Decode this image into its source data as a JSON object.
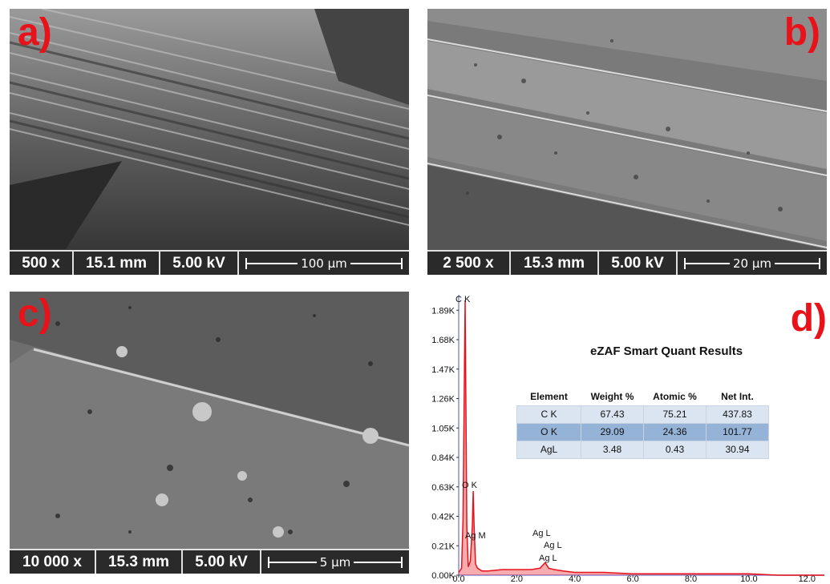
{
  "panels": [
    {
      "label": "a)",
      "magnification": "500 x",
      "working_distance": "15.1 mm",
      "voltage": "5.00 kV",
      "scale_bar": "100 µm"
    },
    {
      "label": "b)",
      "magnification": "2 500 x",
      "working_distance": "15.3 mm",
      "voltage": "5.00 kV",
      "scale_bar": "20 µm"
    },
    {
      "label": "c)",
      "magnification": "10 000 x",
      "working_distance": "15.3 mm",
      "voltage": "5.00 kV",
      "scale_bar": "5 µm"
    },
    {
      "label": "d)"
    }
  ],
  "eds": {
    "title": "eZAF Smart Quant Results",
    "headers": [
      "Element",
      "Weight %",
      "Atomic %",
      "Net Int."
    ],
    "rows": [
      {
        "element": "C K",
        "weight": "67.43",
        "atomic": "75.21",
        "net": "437.83"
      },
      {
        "element": "O K",
        "weight": "29.09",
        "atomic": "24.36",
        "net": "101.77"
      },
      {
        "element": "AgL",
        "weight": "3.48",
        "atomic": "0.43",
        "net": "30.94"
      }
    ],
    "peak_labels": [
      "C K",
      "O K",
      "Ag M",
      "Ag L",
      "Ag L",
      "Ag L"
    ]
  },
  "chart_data": {
    "type": "line",
    "yticks": [
      "0.00K",
      "0.21K",
      "0.42K",
      "0.63K",
      "0.84K",
      "1.05K",
      "1.26K",
      "1.47K",
      "1.68K",
      "1.89K"
    ],
    "xticks": [
      "0.0",
      "2.0",
      "4.0",
      "6.0",
      "8.0",
      "10.0",
      "12.0"
    ],
    "ylim": [
      0,
      2.0
    ],
    "xlim": [
      0,
      12.6
    ],
    "series": [
      {
        "x": [
          0.0,
          0.1,
          0.15,
          0.22,
          0.28,
          0.33,
          0.4,
          0.47,
          0.5,
          0.53,
          0.58,
          0.65,
          0.8,
          1.0,
          1.5,
          2.0,
          2.5,
          2.8,
          2.98,
          3.1,
          3.3,
          3.6,
          4.0,
          5.0,
          6.0,
          7.0,
          8.0,
          9.0,
          10.0,
          11.0,
          12.0,
          12.6
        ],
        "y": [
          0.02,
          0.05,
          0.4,
          1.96,
          0.35,
          0.06,
          0.1,
          0.35,
          0.6,
          0.35,
          0.08,
          0.05,
          0.03,
          0.03,
          0.04,
          0.04,
          0.04,
          0.05,
          0.09,
          0.05,
          0.04,
          0.03,
          0.02,
          0.02,
          0.01,
          0.01,
          0.01,
          0.01,
          0.01,
          0.0,
          0.0,
          0.0
        ],
        "color": "#e8121a"
      }
    ]
  },
  "colors": {
    "label": "#e8121a",
    "spectrum": "#e8121a",
    "axis": "#8a8ad8"
  }
}
